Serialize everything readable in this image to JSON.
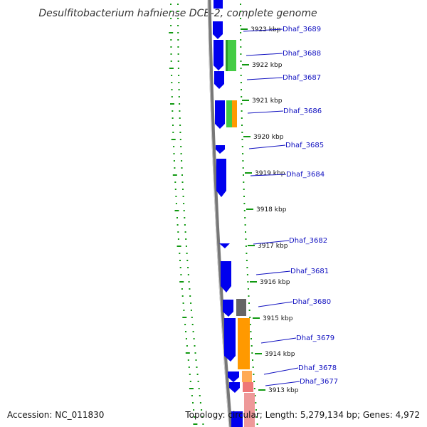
{
  "title": "Desulfitobacterium hafniense DCB-2, complete genome",
  "accession": "Accession: NC_011830",
  "genome_info": "Topology: circular; Length: 5,279,134 bp; Genes: 4,972",
  "colors": {
    "forward_cds": "#0000ee",
    "backbone": "#888888",
    "dots": "#119911",
    "green": "#44cc44",
    "orange": "#ff9900",
    "gray": "#666666",
    "pink": "#ee7777",
    "label": "#1010c0"
  },
  "ticks": [
    {
      "label": "3923 kbp"
    },
    {
      "label": "3922 kbp"
    },
    {
      "label": "3921 kbp"
    },
    {
      "label": "3920 kbp"
    },
    {
      "label": "3919 kbp"
    },
    {
      "label": "3918 kbp"
    },
    {
      "label": "3917 kbp"
    },
    {
      "label": "3916 kbp"
    },
    {
      "label": "3915 kbp"
    },
    {
      "label": "3914 kbp"
    },
    {
      "label": "3913 kbp"
    }
  ],
  "genes": [
    {
      "label": "Dhaf_3689"
    },
    {
      "label": "Dhaf_3688"
    },
    {
      "label": "Dhaf_3687"
    },
    {
      "label": "Dhaf_3686"
    },
    {
      "label": "Dhaf_3685"
    },
    {
      "label": "Dhaf_3684"
    },
    {
      "label": "Dhaf_3682"
    },
    {
      "label": "Dhaf_3681"
    },
    {
      "label": "Dhaf_3680"
    },
    {
      "label": "Dhaf_3679"
    },
    {
      "label": "Dhaf_3678"
    },
    {
      "label": "Dhaf_3677"
    }
  ]
}
